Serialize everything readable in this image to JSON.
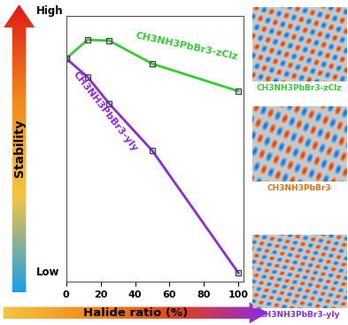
{
  "chart_data": {
    "type": "line",
    "xlabel": "Halide ratio (%)",
    "ylabel": "Stability",
    "annotations": [
      "High",
      "Low",
      "CH3NH3PbBr3-zClz",
      "CH3NH3PbBr3",
      "CH3NH3PbBr3-yIy"
    ],
    "series": [
      {
        "name": "CH3NH3PbBr3-zClz",
        "color": "#33cc33",
        "x": [
          0,
          12.5,
          25,
          50,
          100
        ],
        "values": [
          84,
          91,
          90.7,
          82,
          71.7
        ]
      },
      {
        "name": "CH3NH3PbBr3-yIy",
        "color": "#8a2be2",
        "x": [
          0,
          12.5,
          25,
          50,
          100
        ],
        "values": [
          84,
          77,
          67,
          49.3,
          3.3
        ]
      }
    ],
    "marker": "square",
    "xlim": [
      0,
      103
    ],
    "xticks": [
      0,
      20,
      40,
      60,
      80,
      100
    ],
    "ylim": [
      0,
      100
    ],
    "yticks": [],
    "tick_labels": "x",
    "grid": false
  }
}
